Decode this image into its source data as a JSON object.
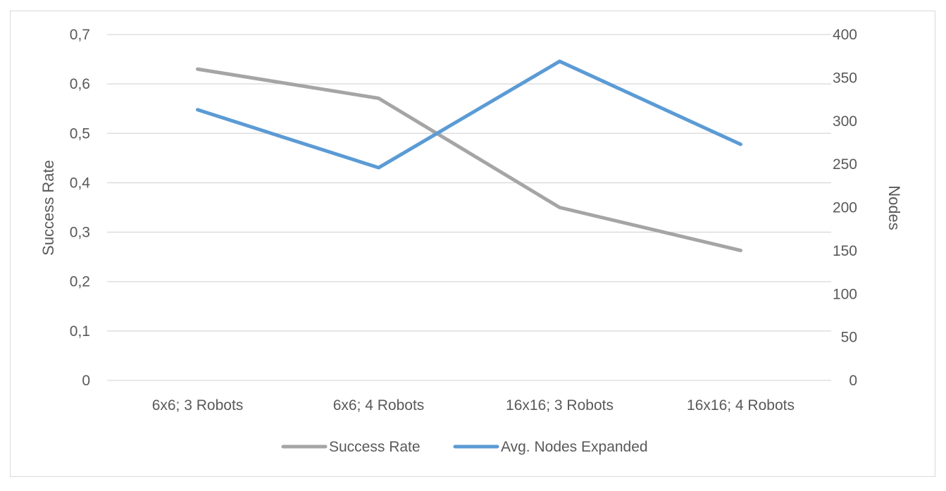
{
  "chart_data": {
    "type": "line",
    "title": "",
    "categories": [
      "6x6; 3 Robots",
      "6x6; 4 Robots",
      "16x16; 3 Robots",
      "16x16; 4 Robots"
    ],
    "series": [
      {
        "name": "Success Rate",
        "axis": "left",
        "color": "#a5a5a5",
        "values": [
          0.63,
          0.571,
          0.35,
          0.263
        ]
      },
      {
        "name": "Avg. Nodes Expanded",
        "axis": "right",
        "color": "#5b9bd5",
        "values": [
          313,
          246,
          369,
          273
        ]
      }
    ],
    "y_left": {
      "label": "Success Rate",
      "ylim": [
        0,
        0.7
      ],
      "ticks": [
        "0",
        "0,1",
        "0,2",
        "0,3",
        "0,4",
        "0,5",
        "0,6",
        "0,7"
      ]
    },
    "y_right": {
      "label": "Nodes",
      "ylim": [
        0,
        400
      ],
      "ticks": [
        "0",
        "50",
        "100",
        "150",
        "200",
        "250",
        "300",
        "350",
        "400"
      ]
    },
    "grid": true,
    "legend": "bottom"
  }
}
